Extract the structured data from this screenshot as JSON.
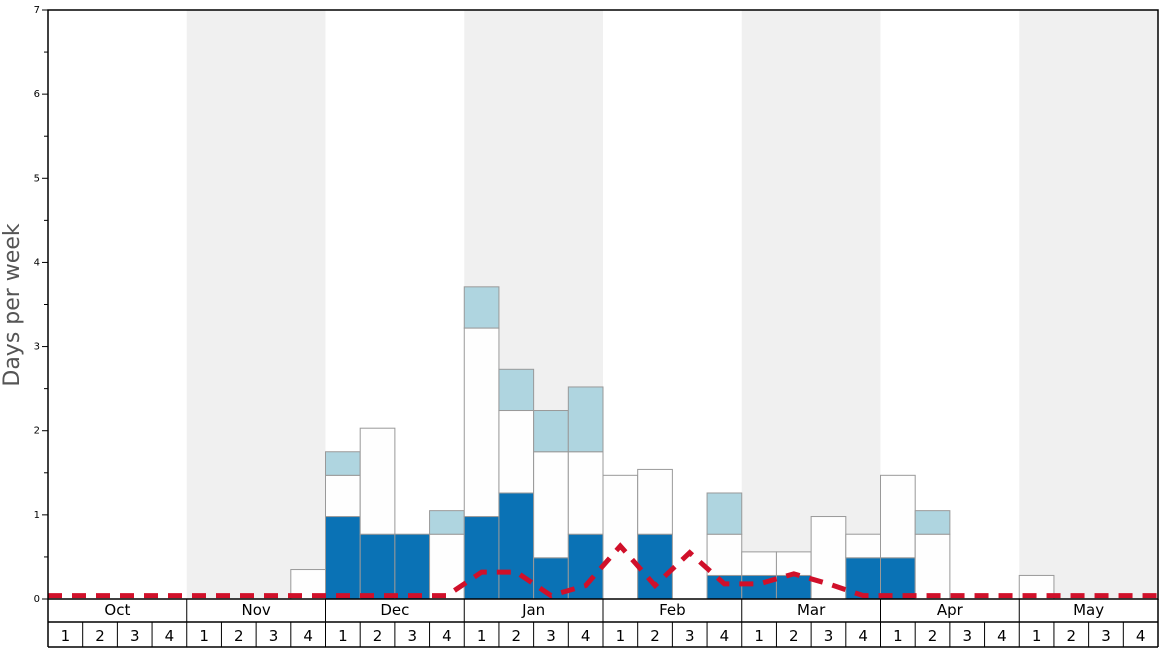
{
  "chart_data": {
    "type": "bar",
    "stacked": true,
    "ylabel": "Days per week",
    "ylim": [
      0,
      7
    ],
    "yticks": [
      0,
      1,
      2,
      3,
      4,
      5,
      6,
      7
    ],
    "months": [
      "Oct",
      "Nov",
      "Dec",
      "Jan",
      "Feb",
      "Mar",
      "Apr",
      "May"
    ],
    "weeks": [
      "1",
      "2",
      "3",
      "4"
    ],
    "alternating_month_shading": true,
    "colors": {
      "bottom": "#0a72b5",
      "middle": "#fefefe",
      "top": "#afd5e0",
      "line": "#d0102a",
      "shade": "#f0f0f0",
      "bar_stroke": "#999999"
    },
    "series": [
      {
        "values": [
          0,
          0,
          0,
          0,
          0,
          0,
          0,
          0,
          0.98,
          0.77,
          0.77,
          0,
          0.98,
          1.26,
          0.49,
          0.77,
          0,
          0.77,
          0,
          0.28,
          0.28,
          0.28,
          0,
          0.49,
          0.49,
          0,
          0,
          0,
          0,
          0,
          0,
          0
        ]
      },
      {
        "values": [
          0,
          0,
          0,
          0,
          0,
          0,
          0,
          0.35,
          0.49,
          1.26,
          0,
          0.77,
          2.24,
          0.98,
          1.26,
          0.98,
          1.47,
          0.77,
          0,
          0.49,
          0.28,
          0.28,
          0.98,
          0.28,
          0.98,
          0.77,
          0,
          0,
          0.28,
          0,
          0,
          0
        ]
      },
      {
        "values": [
          0,
          0,
          0,
          0,
          0,
          0,
          0,
          0,
          0.28,
          0,
          0,
          0.28,
          0.49,
          0.49,
          0.49,
          0.77,
          0,
          0,
          0,
          0.49,
          0,
          0,
          0,
          0,
          0,
          0.28,
          0,
          0,
          0,
          0,
          0,
          0
        ]
      },
      {
        "type": "line",
        "style": "dashed",
        "values": [
          0.04,
          0.04,
          0.04,
          0.04,
          0.04,
          0.04,
          0.04,
          0.04,
          0.04,
          0.04,
          0.04,
          0.04,
          0.32,
          0.32,
          0.04,
          0.16,
          0.63,
          0.16,
          0.55,
          0.18,
          0.18,
          0.3,
          0.18,
          0.04,
          0.04,
          0.04,
          0.04,
          0.04,
          0.04,
          0.04,
          0.04,
          0.04
        ]
      }
    ]
  }
}
